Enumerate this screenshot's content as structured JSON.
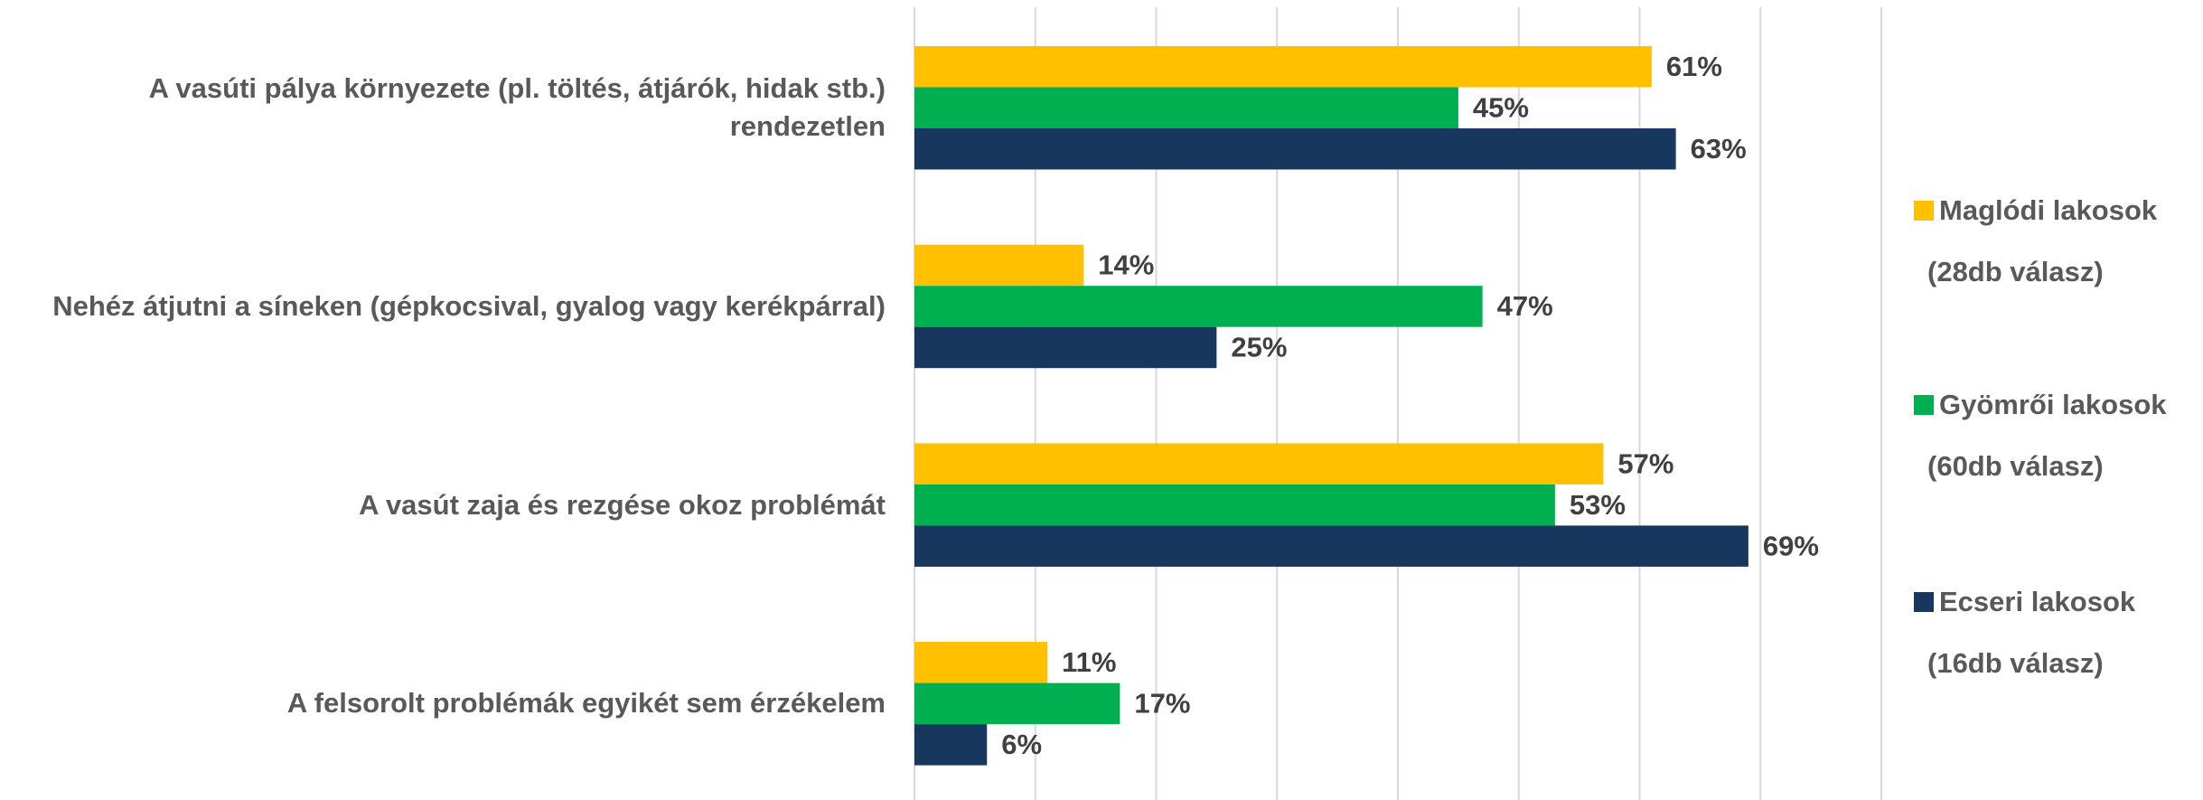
{
  "chart_data": {
    "type": "bar",
    "orientation": "horizontal",
    "categories": [
      "A vasúti pálya környezete (pl. töltés, átjárók, hidak stb.) rendezetlen",
      "Nehéz átjutni a síneken (gépkocsival, gyalog vagy kerékpárral)",
      "A vasút zaja és rezgése okoz problémát",
      "A felsorolt problémák egyikét sem érzékelem"
    ],
    "series": [
      {
        "name": "Maglódi lakosok",
        "note": "(28db válasz)",
        "color": "#FFC000",
        "values": [
          61,
          14,
          57,
          11
        ],
        "value_labels": [
          "61%",
          "14%",
          "57%",
          "11%"
        ]
      },
      {
        "name": "Gyömrői lakosok",
        "note": "(60db válasz)",
        "color": "#00B050",
        "values": [
          45,
          47,
          53,
          17
        ],
        "value_labels": [
          "45%",
          "47%",
          "53%",
          "17%"
        ]
      },
      {
        "name": "Ecseri lakosok",
        "note": "(16db válasz)",
        "color": "#17375E",
        "values": [
          63,
          25,
          69,
          6
        ],
        "value_labels": [
          "63%",
          "25%",
          "69%",
          "6%"
        ]
      }
    ],
    "xlim": [
      0,
      80
    ],
    "xticks": [
      0,
      10,
      20,
      30,
      40,
      50,
      60,
      70,
      80
    ],
    "grid": true,
    "legend": "right"
  }
}
